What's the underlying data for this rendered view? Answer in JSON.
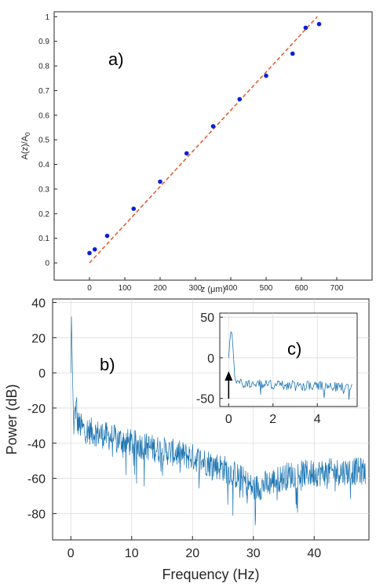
{
  "chart_data": [
    {
      "type": "scatter",
      "panel_label": "a)",
      "title": "",
      "xlabel": "z (μm)",
      "ylabel": "A(z)/A",
      "ylabel_sub": "0",
      "xlim": [
        -100,
        800
      ],
      "ylim": [
        -0.07,
        1.02
      ],
      "xticks": [
        0,
        100,
        200,
        300,
        400,
        500,
        600,
        700
      ],
      "yticks": [
        0,
        0.1,
        0.2,
        0.3,
        0.4,
        0.5,
        0.6,
        0.7,
        0.8,
        0.9,
        1
      ],
      "grid": false,
      "legend": "none",
      "series": [
        {
          "kind": "points",
          "color": "#0a1fd6",
          "x": [
            0,
            15,
            50,
            125,
            200,
            275,
            350,
            425,
            500,
            575,
            612,
            650
          ],
          "y": [
            0.04,
            0.055,
            0.11,
            0.22,
            0.33,
            0.445,
            0.555,
            0.665,
            0.76,
            0.85,
            0.955,
            0.97
          ]
        },
        {
          "kind": "fit-line",
          "color": "#e0582a",
          "style": "dashed",
          "x": [
            0,
            645
          ],
          "y": [
            0.0,
            1.0
          ]
        }
      ]
    },
    {
      "type": "line",
      "panel_label": "b)",
      "title": "",
      "xlabel": "Frequency (Hz)",
      "ylabel": "Power (dB)",
      "xlim": [
        -3,
        49
      ],
      "ylim": [
        -95,
        42
      ],
      "xticks": [
        0,
        10,
        20,
        30,
        40
      ],
      "yticks": [
        -80,
        -60,
        -40,
        -20,
        0,
        20,
        40
      ],
      "grid": true,
      "legend": "none",
      "color": "#1f77b4",
      "description_points": {
        "x": [
          0,
          0.1,
          0.3,
          0.5,
          1,
          2,
          5,
          10,
          15,
          20,
          25,
          28,
          30,
          33,
          36,
          40,
          45,
          48.5
        ],
        "y": [
          0,
          32,
          -5,
          -35,
          -28,
          -32,
          -35,
          -40,
          -44,
          -48,
          -54,
          -60,
          -66,
          -62,
          -58,
          -57,
          -56,
          -56
        ]
      }
    },
    {
      "type": "line",
      "panel_label": "c)",
      "title": "",
      "xlabel": "",
      "ylabel": "",
      "xlim": [
        -0.4,
        5.8
      ],
      "ylim": [
        -60,
        55
      ],
      "xticks": [
        0,
        2,
        4
      ],
      "yticks": [
        -50,
        0,
        50
      ],
      "grid": true,
      "legend": "none",
      "color": "#1f77b4",
      "annotation": "arrow at 0 Hz",
      "description_points": {
        "x": [
          0,
          0.05,
          0.1,
          0.15,
          0.2,
          0.3,
          0.5,
          1,
          2,
          3,
          4,
          5,
          5.6
        ],
        "y": [
          0,
          20,
          32,
          30,
          10,
          -25,
          -32,
          -32,
          -33,
          -34,
          -35,
          -36,
          -36
        ]
      }
    }
  ]
}
